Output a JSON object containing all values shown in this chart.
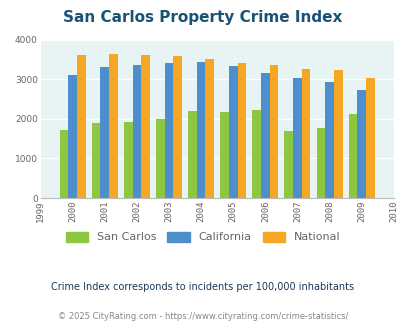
{
  "title": "San Carlos Property Crime Index",
  "years": [
    2000,
    2001,
    2002,
    2003,
    2004,
    2005,
    2006,
    2007,
    2008,
    2009
  ],
  "san_carlos": [
    1720,
    1890,
    1920,
    2000,
    2190,
    2160,
    2230,
    1700,
    1780,
    2120
  ],
  "california": [
    3100,
    3300,
    3360,
    3420,
    3430,
    3330,
    3160,
    3040,
    2940,
    2720
  ],
  "national": [
    3620,
    3640,
    3620,
    3590,
    3510,
    3420,
    3360,
    3270,
    3220,
    3040
  ],
  "color_san_carlos": "#8dc63f",
  "color_california": "#4d8fcc",
  "color_national": "#f5a623",
  "background_plot": "#e8f4f4",
  "background_fig": "#ffffff",
  "xlim": [
    1999,
    2010
  ],
  "ylim": [
    0,
    4000
  ],
  "yticks": [
    0,
    1000,
    2000,
    3000,
    4000
  ],
  "xticks": [
    1999,
    2000,
    2001,
    2002,
    2003,
    2004,
    2005,
    2006,
    2007,
    2008,
    2009,
    2010
  ],
  "title_color": "#1a5276",
  "title_fontsize": 11,
  "legend_labels": [
    "San Carlos",
    "California",
    "National"
  ],
  "footnote1": "Crime Index corresponds to incidents per 100,000 inhabitants",
  "footnote2": "© 2025 CityRating.com - https://www.cityrating.com/crime-statistics/",
  "footnote1_color": "#1a3a5c",
  "footnote2_color": "#888888",
  "bar_width": 0.27,
  "tick_color": "#666666",
  "tick_fontsize": 6.5
}
